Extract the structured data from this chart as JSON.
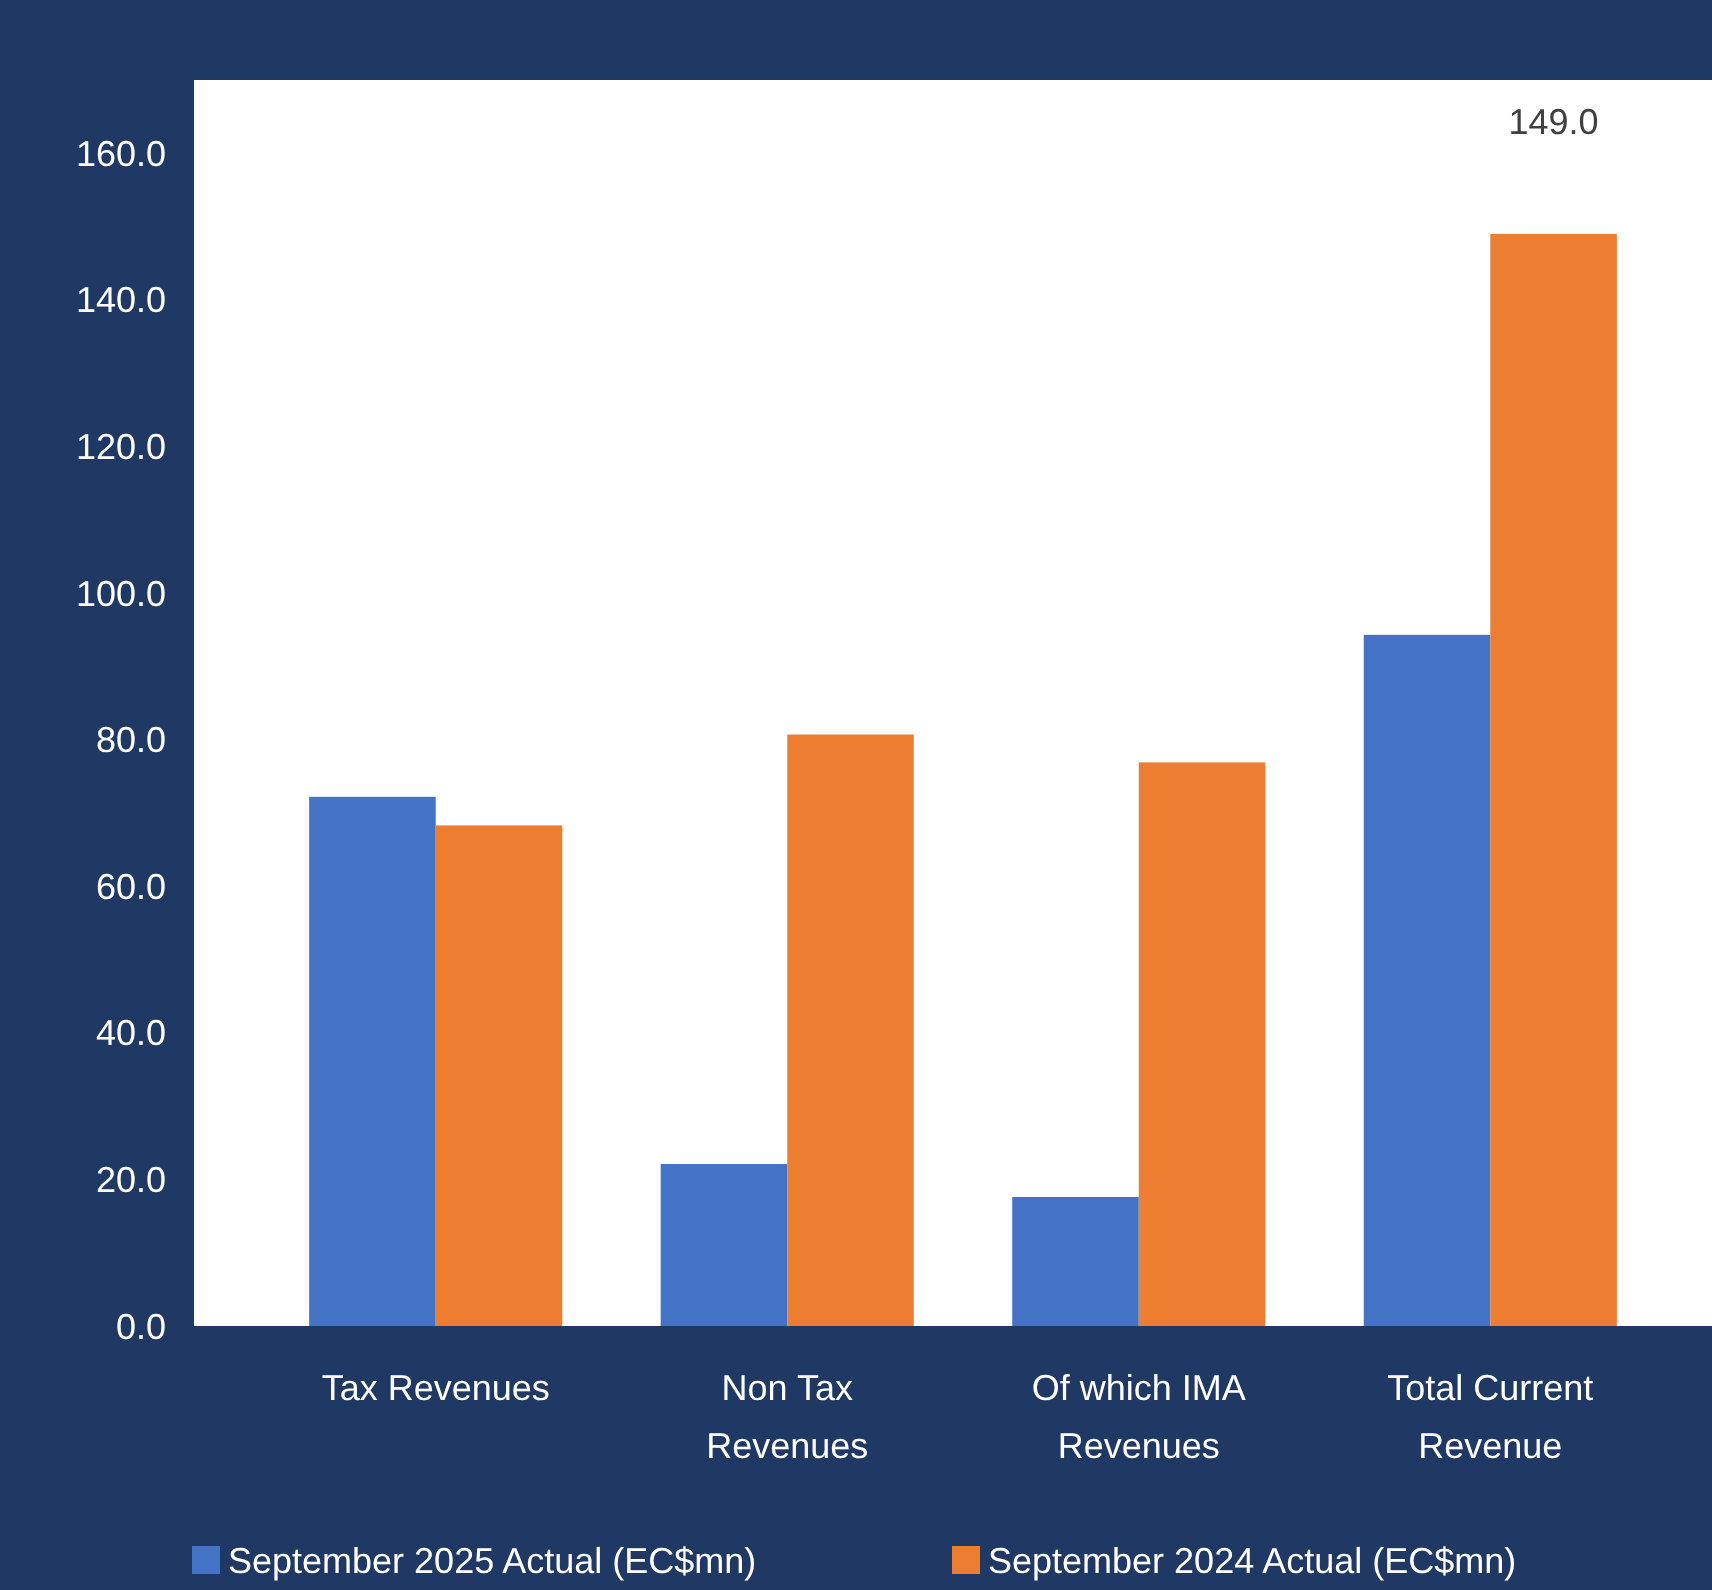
{
  "chart_data": {
    "type": "bar",
    "categories": [
      "Tax Revenues",
      "Non Tax Revenues",
      "Of which IMA Revenues",
      "Total Current Revenue"
    ],
    "series": [
      {
        "name": "September 2025 Actual (EC$mn)",
        "color": "#4472c4",
        "values": [
          72.2,
          22.1,
          17.6,
          94.3
        ]
      },
      {
        "name": "September 2024 Actual (EC$mn)",
        "color": "#ed7d31",
        "values": [
          68.3,
          80.7,
          76.9,
          149.0
        ],
        "value_labels": [
          null,
          null,
          null,
          "149.0"
        ]
      }
    ],
    "ylim": [
      0,
      170
    ],
    "yticks": [
      {
        "value": 0,
        "label": "0.0"
      },
      {
        "value": 20,
        "label": "20.0"
      },
      {
        "value": 40,
        "label": "40.0"
      },
      {
        "value": 60,
        "label": "60.0"
      },
      {
        "value": 80,
        "label": "80.0"
      },
      {
        "value": 100,
        "label": "100.0"
      },
      {
        "value": 120,
        "label": "120.0"
      },
      {
        "value": 140,
        "label": "140.0"
      },
      {
        "value": 160,
        "label": "160.0"
      }
    ],
    "grid": false,
    "legend": "bottom"
  }
}
